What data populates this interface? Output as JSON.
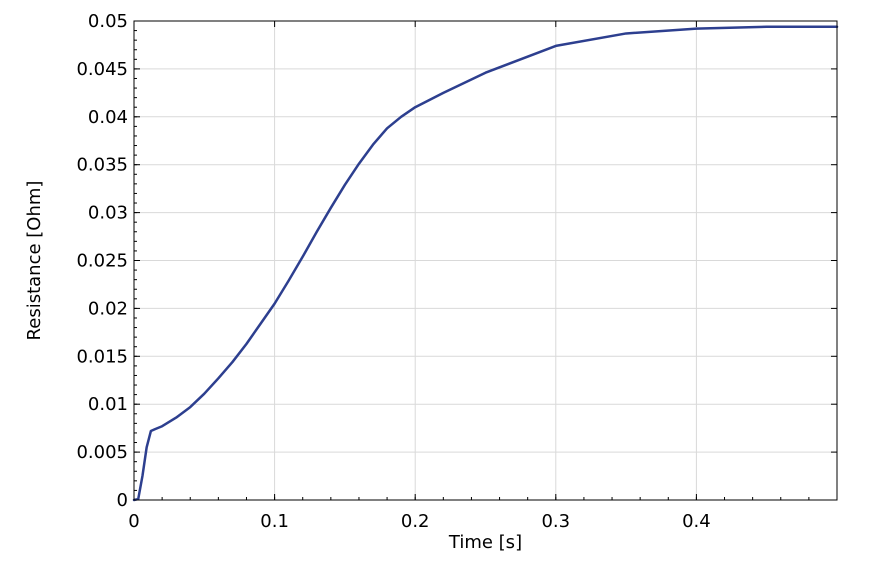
{
  "chart_data": {
    "type": "line",
    "title": "",
    "xlabel": "Time [s]",
    "ylabel": "Resistance [Ohm]",
    "xlim": [
      0,
      0.5
    ],
    "ylim": [
      0,
      0.05
    ],
    "grid": true,
    "colors": {
      "line": "#2d3f8f",
      "grid": "#d9d9d9",
      "axes": "#000000"
    },
    "x_ticks": [
      {
        "value": 0,
        "label": "0"
      },
      {
        "value": 0.1,
        "label": "0.1"
      },
      {
        "value": 0.2,
        "label": "0.2"
      },
      {
        "value": 0.3,
        "label": "0.3"
      },
      {
        "value": 0.4,
        "label": "0.4"
      }
    ],
    "y_ticks": [
      {
        "value": 0,
        "label": "0"
      },
      {
        "value": 0.005,
        "label": "0.005"
      },
      {
        "value": 0.01,
        "label": "0.01"
      },
      {
        "value": 0.015,
        "label": "0.015"
      },
      {
        "value": 0.02,
        "label": "0.02"
      },
      {
        "value": 0.025,
        "label": "0.025"
      },
      {
        "value": 0.03,
        "label": "0.03"
      },
      {
        "value": 0.035,
        "label": "0.035"
      },
      {
        "value": 0.04,
        "label": "0.04"
      },
      {
        "value": 0.045,
        "label": "0.045"
      },
      {
        "value": 0.05,
        "label": "0.05"
      }
    ],
    "series": [
      {
        "x": [
          0.0,
          0.003,
          0.006,
          0.009,
          0.012,
          0.015,
          0.02,
          0.03,
          0.04,
          0.05,
          0.06,
          0.07,
          0.08,
          0.09,
          0.1,
          0.11,
          0.12,
          0.13,
          0.14,
          0.15,
          0.16,
          0.17,
          0.18,
          0.19,
          0.2,
          0.22,
          0.25,
          0.3,
          0.35,
          0.4,
          0.45,
          0.5
        ],
        "y": [
          0.0,
          0.0001,
          0.0025,
          0.0055,
          0.0072,
          0.0074,
          0.0077,
          0.0086,
          0.0097,
          0.0111,
          0.0127,
          0.0144,
          0.0163,
          0.0184,
          0.0205,
          0.0229,
          0.0254,
          0.028,
          0.0305,
          0.0329,
          0.0351,
          0.0371,
          0.0388,
          0.04,
          0.041,
          0.0425,
          0.0446,
          0.0474,
          0.0487,
          0.0492,
          0.0494,
          0.0494
        ]
      }
    ]
  }
}
